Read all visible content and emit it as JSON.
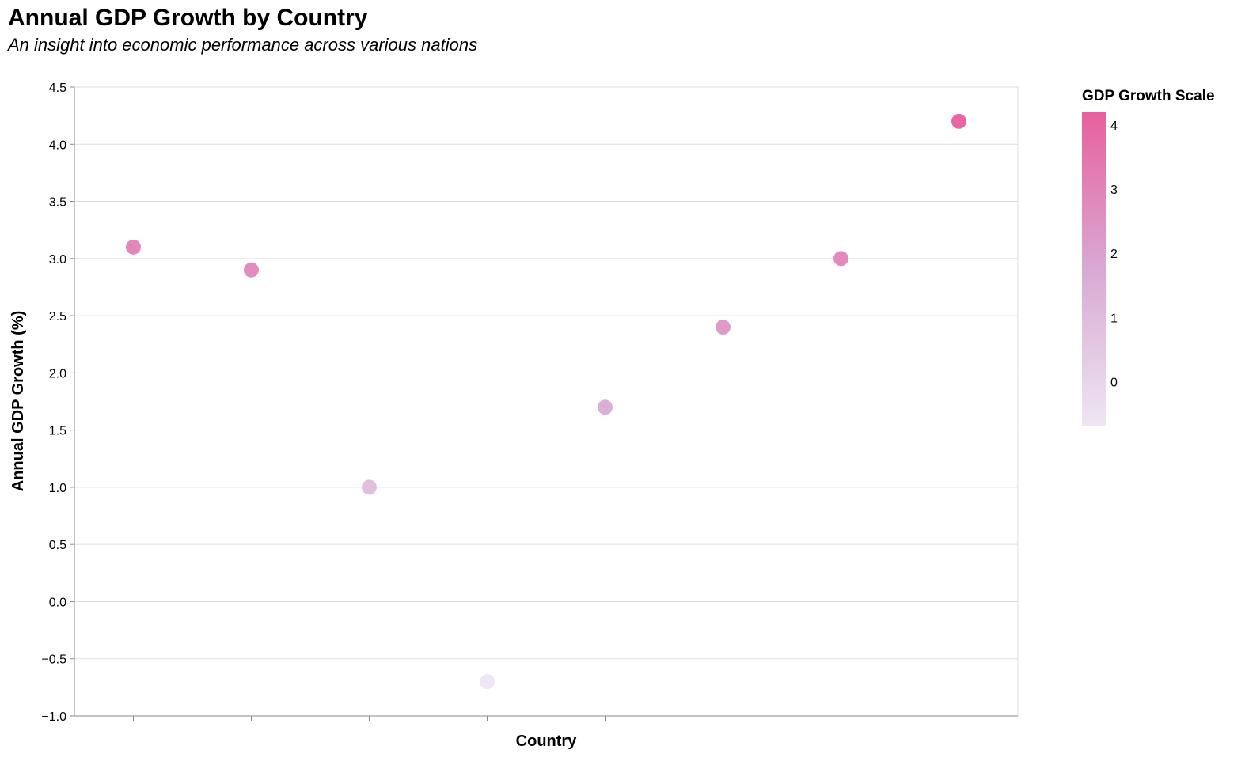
{
  "chart_data": {
    "type": "scatter",
    "title": "Annual GDP Growth by Country",
    "subtitle": "An insight into economic performance across various nations",
    "xlabel": "Country",
    "ylabel": "Annual GDP Growth (%)",
    "ylim": [
      -1.0,
      4.5
    ],
    "yticks": [
      "4.5",
      "4.0",
      "3.5",
      "3.0",
      "2.5",
      "2.0",
      "1.5",
      "1.0",
      "0.5",
      "0.0",
      "−0.5",
      "−1.0"
    ],
    "x_tick_labels_visible": false,
    "grid": true,
    "values": [
      3.1,
      2.9,
      1.0,
      -0.7,
      1.7,
      2.4,
      3.0,
      4.2
    ],
    "legend": {
      "title": "GDP Growth Scale",
      "type": "color-gradient",
      "placement": "right",
      "ticks": [
        "4",
        "3",
        "2",
        "1",
        "0"
      ],
      "domain": [
        -0.7,
        4.2
      ],
      "color_low": "#ede6f2",
      "color_high": "#e8609e"
    }
  }
}
